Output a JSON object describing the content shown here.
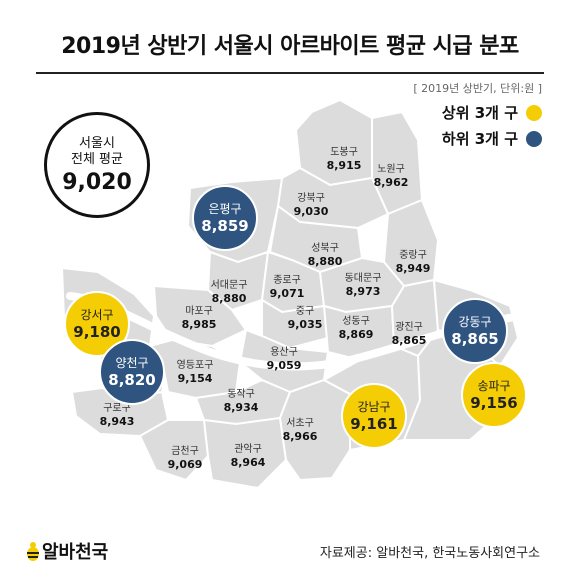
{
  "title": "2019년 상반기 서울시 아르바이트 평균 시급 분포",
  "subnote": "[ 2019년 상반기, 단위:원 ]",
  "legend": {
    "top": "상위 3개 구",
    "bottom": "하위 3개 구",
    "top_color": "#f5cd05",
    "bottom_color": "#2f5480"
  },
  "seoul_average": {
    "line1": "서울시",
    "line2": "전체 평균",
    "value": "9,020"
  },
  "districts": {
    "dobong": {
      "name": "도봉구",
      "wage": "8,915"
    },
    "nowon": {
      "name": "노원구",
      "wage": "8,962"
    },
    "gangbuk": {
      "name": "강북구",
      "wage": "9,030"
    },
    "eunpyeong": {
      "name": "은평구",
      "wage": "8,859"
    },
    "seongbuk": {
      "name": "성북구",
      "wage": "8,880"
    },
    "jungnang": {
      "name": "중랑구",
      "wage": "8,949"
    },
    "seodaemun": {
      "name": "서대문구",
      "wage": "8,880"
    },
    "jongno": {
      "name": "종로구",
      "wage": "9,071"
    },
    "dongdaemun": {
      "name": "동대문구",
      "wage": "8,973"
    },
    "mapo": {
      "name": "마포구",
      "wage": "8,985"
    },
    "jung": {
      "name": "중구",
      "wage": "9,035"
    },
    "seongdong": {
      "name": "성동구",
      "wage": "8,869"
    },
    "gwangjin": {
      "name": "광진구",
      "wage": "8,865"
    },
    "gangseo": {
      "name": "강서구",
      "wage": "9,180"
    },
    "yongsan": {
      "name": "용산구",
      "wage": "9,059"
    },
    "gangdong": {
      "name": "강동구",
      "wage": "8,865"
    },
    "yangcheon": {
      "name": "양천구",
      "wage": "8,820"
    },
    "yeongdeungpo": {
      "name": "영등포구",
      "wage": "9,154"
    },
    "songpa": {
      "name": "송파구",
      "wage": "9,156"
    },
    "dongjak": {
      "name": "동작구",
      "wage": "8,934"
    },
    "guro": {
      "name": "구로구",
      "wage": "8,943"
    },
    "gangnam": {
      "name": "강남구",
      "wage": "9,161"
    },
    "seocho": {
      "name": "서초구",
      "wage": "8,966"
    },
    "geumcheon": {
      "name": "금천구",
      "wage": "9,069"
    },
    "gwanak": {
      "name": "관악구",
      "wage": "8,964"
    }
  },
  "brand": "알바천국",
  "source": "자료제공: 알바천국, 한국노동사회연구소",
  "colors": {
    "map_fill": "#dcdcdc",
    "border": "#ffffff",
    "river": "#ffffff"
  },
  "icons": {
    "brand_logo": "bee-logo-icon"
  }
}
